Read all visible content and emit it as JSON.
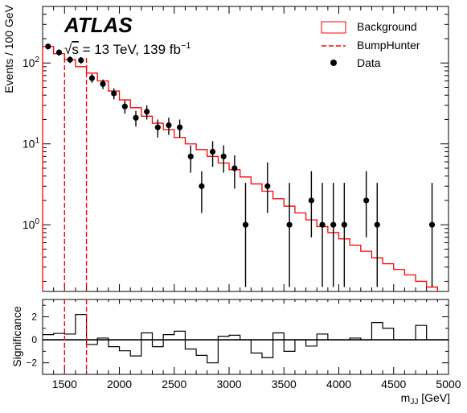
{
  "chart_data": {
    "type": "histogram-with-ratio",
    "experiment_label": "ATLAS",
    "energy_label": {
      "sqrt": "√",
      "s": "s",
      "rest": " = 13 TeV, 139 fb",
      "sup": "−1"
    },
    "legend": {
      "placement": "top-right",
      "entries": [
        {
          "label": "Background",
          "style": "red-box"
        },
        {
          "label": "BumpHunter",
          "style": "red-dashed"
        },
        {
          "label": "Data",
          "style": "black-marker"
        }
      ]
    },
    "colors": {
      "background": "#ff0000",
      "bumphunter": "#ff0000",
      "data": "#000000"
    },
    "main_panel": {
      "ylabel": "Events / 100 GeV",
      "yscale": "log",
      "ylim": [
        0.15,
        500
      ],
      "major_ticks": [
        {
          "value": 1,
          "base": "10",
          "exp": "0"
        },
        {
          "value": 10,
          "base": "10",
          "exp": "1"
        },
        {
          "value": 100,
          "base": "10",
          "exp": "2"
        }
      ]
    },
    "ratio_panel": {
      "ylabel": "Significance",
      "ylim": [
        -3,
        3.5
      ],
      "ticks": [
        {
          "value": -2,
          "label": "−2"
        },
        {
          "value": 0,
          "label": "0"
        },
        {
          "value": 2,
          "label": "2"
        }
      ]
    },
    "xaxis": {
      "xlabel_main": "m",
      "xlabel_sub": "JJ",
      "xlabel_unit": " [GeV]",
      "xlim": [
        1300,
        5000
      ],
      "ticks": [
        {
          "value": 1500,
          "label": "1500"
        },
        {
          "value": 2000,
          "label": "2000"
        },
        {
          "value": 2500,
          "label": "2500"
        },
        {
          "value": 3000,
          "label": "3000"
        },
        {
          "value": 3500,
          "label": "3500"
        },
        {
          "value": 4000,
          "label": "4000"
        },
        {
          "value": 4500,
          "label": "4500"
        },
        {
          "value": 5000,
          "label": "5000"
        }
      ]
    },
    "bumphunter_interval": [
      1500,
      1700
    ],
    "bin_edges": [
      1300,
      1400,
      1500,
      1600,
      1700,
      1800,
      1900,
      2000,
      2100,
      2200,
      2300,
      2400,
      2500,
      2600,
      2700,
      2800,
      2900,
      3000,
      3100,
      3200,
      3300,
      3400,
      3500,
      3600,
      3700,
      3800,
      3900,
      4000,
      4100,
      4200,
      4300,
      4400,
      4500,
      4600,
      4700,
      4800,
      4900
    ],
    "background": [
      160,
      130,
      110,
      90,
      75,
      60,
      45,
      35,
      28,
      22,
      18,
      15,
      12,
      10,
      8.5,
      7,
      5.8,
      4.8,
      3.9,
      3.2,
      2.6,
      2.1,
      1.7,
      1.4,
      1.15,
      0.95,
      0.8,
      0.67,
      0.56,
      0.47,
      0.39,
      0.33,
      0.28,
      0.24,
      0.2,
      0.17
    ],
    "data": {
      "x": [
        1350,
        1450,
        1550,
        1650,
        1750,
        1850,
        1950,
        2050,
        2150,
        2250,
        2350,
        2450,
        2550,
        2650,
        2750,
        2850,
        2950,
        3050,
        3150,
        3350,
        3550,
        3750,
        3850,
        3950,
        4050,
        4250,
        4350,
        4850
      ],
      "y": [
        160,
        135,
        110,
        108,
        65,
        55,
        42,
        29,
        21,
        25,
        16,
        17,
        16,
        7,
        3,
        8,
        7,
        5,
        1,
        3,
        1,
        2,
        1,
        1,
        1,
        2,
        1,
        1
      ],
      "err_low": [
        13,
        12,
        10.5,
        10,
        8,
        7.4,
        6.5,
        5.4,
        4.6,
        5,
        4,
        4.1,
        4,
        2.6,
        1.6,
        2.8,
        2.6,
        2.2,
        0.83,
        1.6,
        0.83,
        1.3,
        0.83,
        0.83,
        0.83,
        1.3,
        0.83,
        0.83
      ],
      "err_high": [
        13,
        12,
        10.5,
        10,
        8,
        7.4,
        6.5,
        5.4,
        4.6,
        5,
        4,
        4.1,
        4,
        2.6,
        1.6,
        2.8,
        2.6,
        2.2,
        2.3,
        2.9,
        2.3,
        2.6,
        2.3,
        2.3,
        2.3,
        2.6,
        2.3,
        2.3
      ]
    },
    "significance": [
      0.45,
      0.55,
      0.5,
      2.2,
      -0.4,
      0.15,
      -0.6,
      -0.95,
      -1.4,
      0.6,
      -0.6,
      0.45,
      0.75,
      -0.8,
      -1.35,
      -2.0,
      0.3,
      0.4,
      0.0,
      -1.15,
      -1.55,
      0.6,
      -1.0,
      0.0,
      -0.55,
      0.5,
      0.0,
      0.0,
      0.15,
      0.0,
      1.5,
      1.0,
      0.0,
      0.0,
      1.25,
      0.0
    ]
  }
}
